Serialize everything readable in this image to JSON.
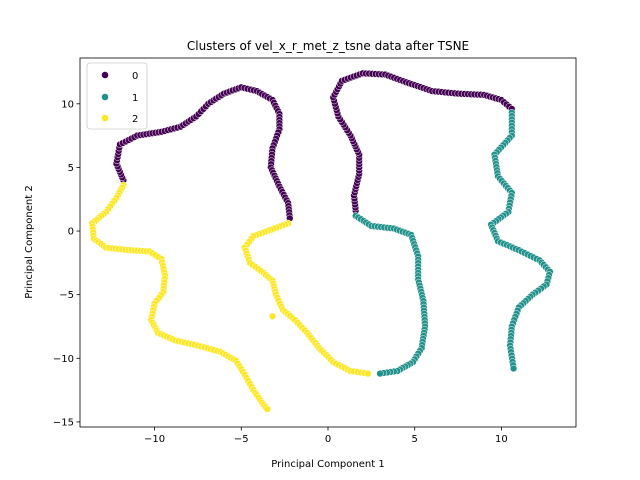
{
  "chart_data": {
    "type": "scatter",
    "title": "Clusters of vel_x_r_met_z_tsne data after TSNE",
    "xlabel": "Principal Component 1",
    "ylabel": "Principal Component 2",
    "xlim": [
      -14.3,
      14.3
    ],
    "ylim": [
      -15.4,
      13.6
    ],
    "xticks": [
      -10,
      -5,
      0,
      5,
      10
    ],
    "yticks": [
      -15,
      -10,
      -5,
      0,
      5,
      10
    ],
    "grid": false,
    "legend": {
      "position": "top-left",
      "entries": [
        "0",
        "1",
        "2"
      ]
    },
    "colors": {
      "0": "#440154",
      "1": "#21918c",
      "2": "#fde725"
    },
    "series": [
      {
        "name": "0",
        "color": "#440154",
        "paths": [
          [
            [
              -11.8,
              4.0
            ],
            [
              -12.2,
              5.3
            ],
            [
              -12.0,
              6.8
            ],
            [
              -11.0,
              7.5
            ],
            [
              -9.6,
              7.8
            ],
            [
              -8.5,
              8.2
            ],
            [
              -7.6,
              9.0
            ],
            [
              -6.9,
              10.0
            ],
            [
              -6.0,
              10.8
            ],
            [
              -5.0,
              11.3
            ],
            [
              -4.1,
              11.0
            ],
            [
              -3.2,
              10.3
            ],
            [
              -2.8,
              9.2
            ],
            [
              -2.8,
              8.0
            ],
            [
              -3.2,
              6.5
            ],
            [
              -3.3,
              5.0
            ],
            [
              -2.8,
              3.5
            ],
            [
              -2.3,
              2.2
            ],
            [
              -2.2,
              1.0
            ]
          ],
          [
            [
              1.6,
              1.6
            ],
            [
              1.5,
              2.8
            ],
            [
              1.8,
              4.5
            ],
            [
              1.8,
              6.0
            ],
            [
              1.3,
              7.5
            ],
            [
              0.6,
              9.0
            ],
            [
              0.3,
              10.5
            ],
            [
              0.8,
              11.8
            ],
            [
              2.0,
              12.4
            ],
            [
              3.3,
              12.3
            ],
            [
              4.5,
              11.7
            ],
            [
              6.0,
              11.0
            ],
            [
              7.5,
              10.8
            ],
            [
              9.0,
              10.7
            ],
            [
              10.0,
              10.3
            ],
            [
              10.6,
              9.6
            ]
          ]
        ]
      },
      {
        "name": "1",
        "color": "#21918c",
        "paths": [
          [
            [
              1.6,
              1.2
            ],
            [
              2.5,
              0.4
            ],
            [
              3.8,
              0.2
            ],
            [
              4.8,
              -0.3
            ],
            [
              5.2,
              -2.0
            ],
            [
              5.2,
              -3.8
            ],
            [
              5.5,
              -5.5
            ],
            [
              5.6,
              -7.5
            ],
            [
              5.4,
              -9.2
            ],
            [
              4.9,
              -10.3
            ],
            [
              4.0,
              -11.0
            ],
            [
              3.0,
              -11.2
            ]
          ],
          [
            [
              10.6,
              9.3
            ],
            [
              10.6,
              7.5
            ],
            [
              9.6,
              6.0
            ],
            [
              9.8,
              4.3
            ],
            [
              10.6,
              3.0
            ],
            [
              10.4,
              1.5
            ],
            [
              9.4,
              0.5
            ],
            [
              9.8,
              -0.8
            ],
            [
              11.0,
              -1.5
            ],
            [
              12.2,
              -2.3
            ],
            [
              12.8,
              -3.2
            ],
            [
              12.6,
              -4.2
            ],
            [
              11.8,
              -5.0
            ],
            [
              11.0,
              -6.0
            ],
            [
              10.6,
              -7.5
            ],
            [
              10.5,
              -9.0
            ],
            [
              10.7,
              -10.8
            ]
          ]
        ]
      },
      {
        "name": "2",
        "color": "#fde725",
        "paths": [
          [
            [
              -11.8,
              3.6
            ],
            [
              -12.2,
              2.6
            ],
            [
              -12.8,
              1.5
            ],
            [
              -13.6,
              0.6
            ],
            [
              -13.5,
              -0.6
            ],
            [
              -12.8,
              -1.3
            ],
            [
              -11.5,
              -1.5
            ],
            [
              -10.3,
              -1.6
            ],
            [
              -9.6,
              -2.2
            ],
            [
              -9.4,
              -3.5
            ],
            [
              -9.5,
              -4.8
            ],
            [
              -10.0,
              -5.7
            ],
            [
              -10.2,
              -7.0
            ],
            [
              -9.8,
              -8.0
            ],
            [
              -8.8,
              -8.6
            ],
            [
              -7.5,
              -9.0
            ],
            [
              -6.2,
              -9.5
            ],
            [
              -5.3,
              -10.2
            ],
            [
              -4.8,
              -11.3
            ],
            [
              -4.3,
              -12.5
            ],
            [
              -3.8,
              -13.5
            ],
            [
              -3.5,
              -14.0
            ]
          ],
          [
            [
              -2.3,
              0.6
            ],
            [
              -3.3,
              0.1
            ],
            [
              -4.3,
              -0.4
            ],
            [
              -4.8,
              -1.3
            ],
            [
              -4.5,
              -2.5
            ],
            [
              -3.7,
              -3.3
            ],
            [
              -3.2,
              -3.9
            ],
            [
              -3.0,
              -5.0
            ],
            [
              -2.6,
              -6.2
            ],
            [
              -1.9,
              -7.0
            ],
            [
              -1.2,
              -8.0
            ],
            [
              -0.5,
              -9.2
            ],
            [
              0.3,
              -10.3
            ],
            [
              1.3,
              -11.0
            ],
            [
              2.3,
              -11.2
            ]
          ],
          [
            [
              -3.2,
              -6.7
            ]
          ]
        ]
      }
    ]
  }
}
